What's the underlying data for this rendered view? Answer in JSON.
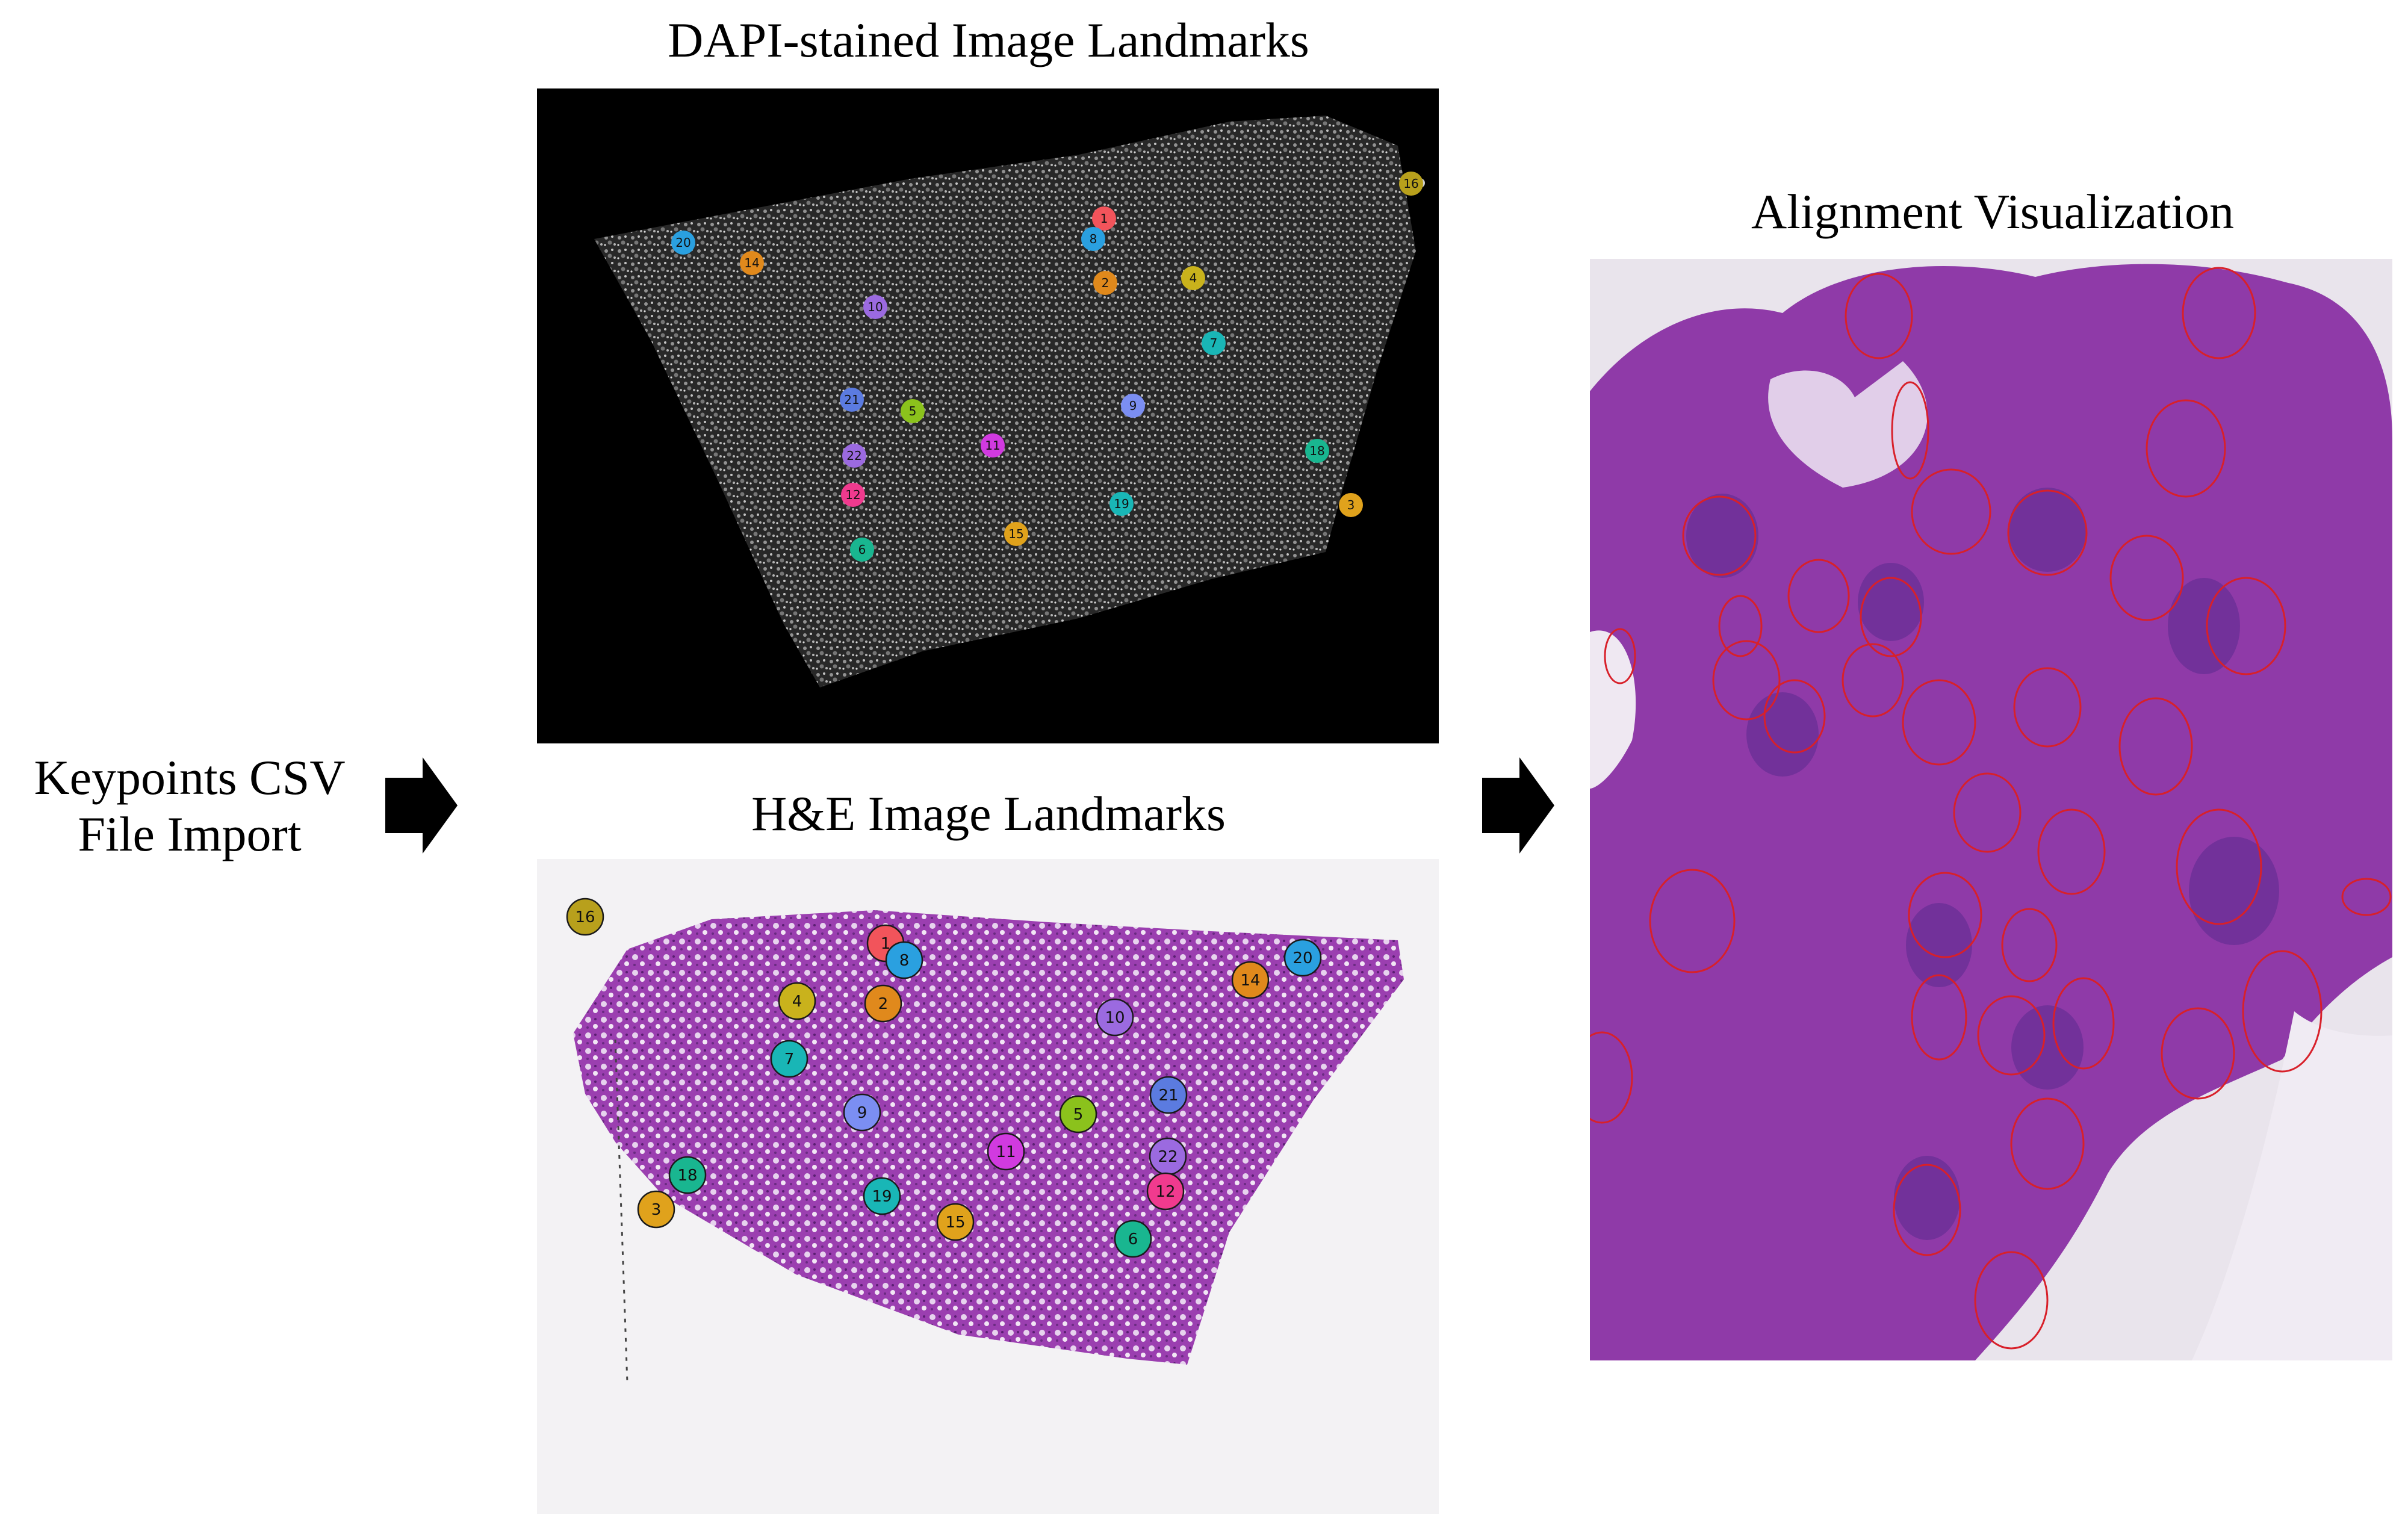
{
  "titles": {
    "dapi": "DAPI-stained Image Landmarks",
    "he": "H&E  Image Landmarks",
    "alignment": "Alignment Visualization"
  },
  "left_label": {
    "line1": "Keypoints CSV",
    "line2": "File Import"
  },
  "colors": {
    "arrow": "#000000",
    "dapi_background": "#000000",
    "he_tissue": "#9b3fb0",
    "align_tissue": "#8f3aa8",
    "nucleus_outline": "#d8202a"
  },
  "dapi_landmarks": [
    {
      "label": "1",
      "color": "#f2545b"
    },
    {
      "label": "8",
      "color": "#2aa0e0"
    },
    {
      "label": "2",
      "color": "#e0891c"
    },
    {
      "label": "4",
      "color": "#c9b21c"
    },
    {
      "label": "16",
      "color": "#b8a01c"
    },
    {
      "label": "20",
      "color": "#2aa0e0"
    },
    {
      "label": "14",
      "color": "#e0891c"
    },
    {
      "label": "10",
      "color": "#9b6ae0"
    },
    {
      "label": "7",
      "color": "#19b6b6"
    },
    {
      "label": "21",
      "color": "#5b7be0"
    },
    {
      "label": "5",
      "color": "#8bc21c"
    },
    {
      "label": "9",
      "color": "#7b8ef2"
    },
    {
      "label": "11",
      "color": "#d13ae0"
    },
    {
      "label": "22",
      "color": "#9b6ae0"
    },
    {
      "label": "12",
      "color": "#f03a8e"
    },
    {
      "label": "18",
      "color": "#19b690"
    },
    {
      "label": "19",
      "color": "#19b6b6"
    },
    {
      "label": "3",
      "color": "#e0a21c"
    },
    {
      "label": "15",
      "color": "#e0a21c"
    },
    {
      "label": "6",
      "color": "#19b690"
    }
  ],
  "he_landmarks": [
    {
      "label": "16",
      "color": "#b8a01c"
    },
    {
      "label": "1",
      "color": "#f2545b"
    },
    {
      "label": "8",
      "color": "#2aa0e0"
    },
    {
      "label": "20",
      "color": "#2aa0e0"
    },
    {
      "label": "14",
      "color": "#e0891c"
    },
    {
      "label": "4",
      "color": "#c9b21c"
    },
    {
      "label": "2",
      "color": "#e0891c"
    },
    {
      "label": "10",
      "color": "#9b6ae0"
    },
    {
      "label": "7",
      "color": "#19b6b6"
    },
    {
      "label": "9",
      "color": "#7b8ef2"
    },
    {
      "label": "5",
      "color": "#8bc21c"
    },
    {
      "label": "21",
      "color": "#5b7be0"
    },
    {
      "label": "11",
      "color": "#d13ae0"
    },
    {
      "label": "22",
      "color": "#9b6ae0"
    },
    {
      "label": "18",
      "color": "#19b690"
    },
    {
      "label": "12",
      "color": "#f03a8e"
    },
    {
      "label": "3",
      "color": "#e0a21c"
    },
    {
      "label": "19",
      "color": "#19b6b6"
    },
    {
      "label": "15",
      "color": "#e0a21c"
    },
    {
      "label": "6",
      "color": "#19b690"
    }
  ]
}
